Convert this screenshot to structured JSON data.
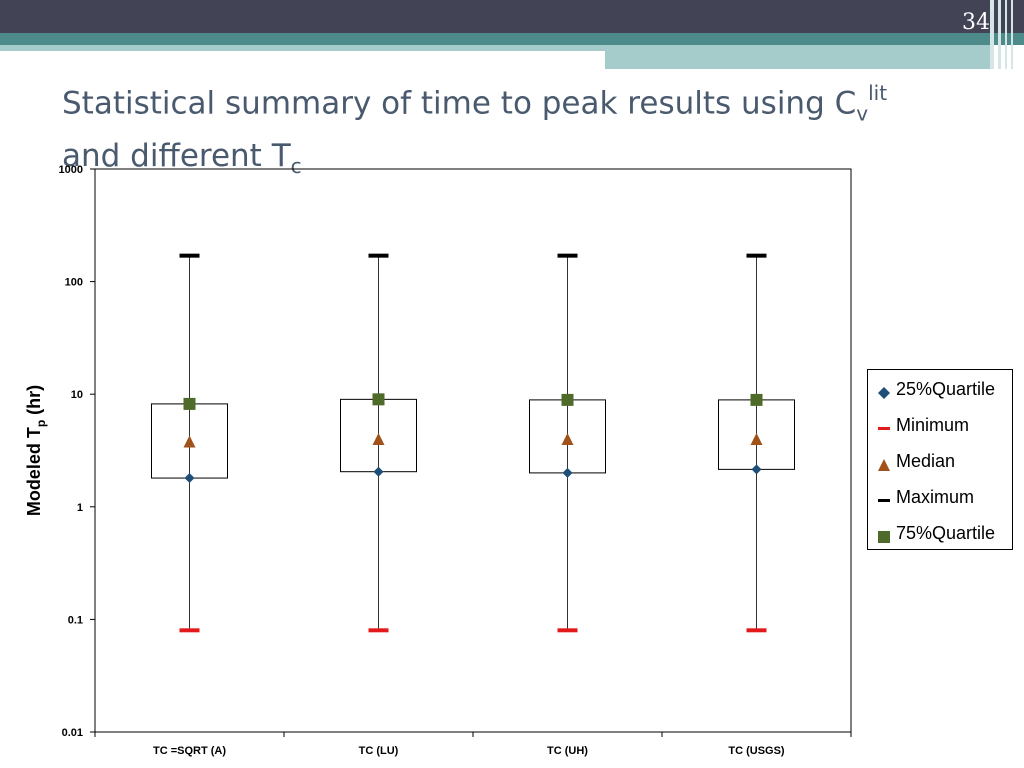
{
  "slide": {
    "number": "34",
    "title_line1_main": "Statistical summary of time to peak results using C",
    "title_line1_sub": "v",
    "title_line1_sup": "lit",
    "title_line2_main": "and different T",
    "title_line2_sub": "c"
  },
  "colors": {
    "top_band": "#434356",
    "teal_band": "#4d8a8a",
    "light_band": "#a6cbcb",
    "title_text": "#4a5a6e",
    "q25": "#1f4e79",
    "minimum": "#e31a1c",
    "median": "#a0521a",
    "maximum": "#000000",
    "q75": "#4e6b2a"
  },
  "chart_data": {
    "type": "box",
    "y_scale": "log",
    "ylim": [
      0.01,
      1000
    ],
    "yticks": [
      "0.01",
      "0.1",
      "1",
      "10",
      "100",
      "1000"
    ],
    "ylabel_main": "Modeled T",
    "ylabel_sub": "p",
    "ylabel_unit": " (hr)",
    "categories": [
      "TC =SQRT (A)",
      "TC (LU)",
      "TC (UH)",
      "TC (USGS)"
    ],
    "series": [
      {
        "name": "25%Quartile",
        "marker": "diamond",
        "values": [
          1.8,
          2.05,
          2.0,
          2.15
        ]
      },
      {
        "name": "Minimum",
        "marker": "dash",
        "values": [
          0.08,
          0.08,
          0.08,
          0.08
        ]
      },
      {
        "name": "Median",
        "marker": "triangle",
        "values": [
          3.8,
          4.0,
          4.0,
          4.0
        ]
      },
      {
        "name": "Maximum",
        "marker": "dash",
        "values": [
          170,
          170,
          170,
          170
        ]
      },
      {
        "name": "75%Quartile",
        "marker": "square",
        "values": [
          8.2,
          9.0,
          8.9,
          8.9
        ]
      }
    ],
    "legend_position": "right"
  }
}
